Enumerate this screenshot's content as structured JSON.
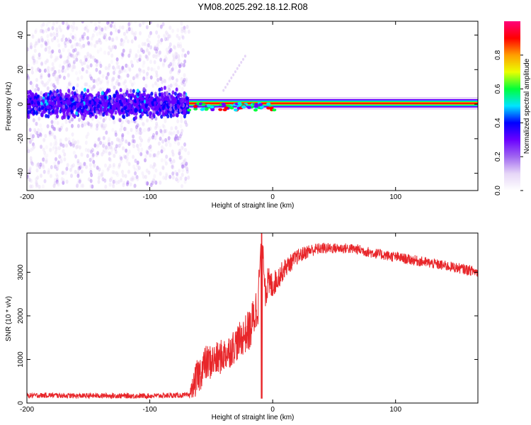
{
  "title": "YM08.2025.292.18.12.R08",
  "colors": {
    "snr_line": "#e8262a",
    "axis": "#000000",
    "colormap": [
      "#ffffff",
      "#e6d6f7",
      "#a066f0",
      "#6a00ff",
      "#0000ff",
      "#00e5ff",
      "#00ff3a",
      "#eaff00",
      "#ff9e00",
      "#ff0000",
      "#ff007a"
    ]
  },
  "chart_data": [
    {
      "type": "heatmap",
      "title": "",
      "xlabel": "Height of straight line (km)",
      "ylabel": "Frequency (Hz)",
      "xlim": [
        -200,
        167
      ],
      "ylim": [
        -50,
        48
      ],
      "xticks": [
        "-200",
        "-100",
        "0",
        "100"
      ],
      "xtick_values": [
        -200,
        -100,
        0,
        100
      ],
      "yticks": [
        "-40",
        "-20",
        "0",
        "20",
        "40"
      ],
      "ytick_values": [
        -40,
        -20,
        0,
        20,
        40
      ],
      "noise_region": {
        "x_from": -200,
        "x_to": -68,
        "freq_spread": 48,
        "band_center": 0,
        "band_halfwidth": 10
      },
      "signal_band": {
        "x_from": -68,
        "x_to": 167,
        "freq_center": 0.5,
        "freq_halfwidth": 1.5
      },
      "colorbar": {
        "label": "Normalized spectral amplitude",
        "range": [
          0,
          1
        ],
        "ticks": [
          "0.0",
          "0.2",
          "0.4",
          "0.6",
          "0.8"
        ],
        "tick_values": [
          0,
          0.2,
          0.4,
          0.6,
          0.8
        ]
      }
    },
    {
      "type": "line",
      "title": "",
      "xlabel": "Height of straight line (km)",
      "ylabel": "SNR (10 * v/v)",
      "xlim": [
        -200,
        167
      ],
      "ylim": [
        0,
        3900
      ],
      "xticks": [
        "-200",
        "-100",
        "0",
        "100"
      ],
      "xtick_values": [
        -200,
        -100,
        0,
        100
      ],
      "yticks": [
        "0",
        "1000",
        "2000",
        "3000"
      ],
      "ytick_values": [
        0,
        1000,
        2000,
        3000
      ],
      "series": [
        {
          "name": "SNR",
          "x": [
            -200,
            -180,
            -160,
            -140,
            -120,
            -100,
            -80,
            -68,
            -62,
            -55,
            -45,
            -35,
            -25,
            -18,
            -12,
            -9,
            -6,
            0,
            10,
            20,
            30,
            40,
            50,
            60,
            70,
            80,
            100,
            120,
            140,
            160,
            167
          ],
          "values": [
            170,
            180,
            165,
            170,
            165,
            165,
            175,
            180,
            550,
            900,
            1000,
            1200,
            1500,
            1700,
            2300,
            3900,
            2700,
            2700,
            3100,
            3350,
            3500,
            3550,
            3550,
            3550,
            3520,
            3450,
            3350,
            3250,
            3150,
            3050,
            3000
          ],
          "noise_amplitude": [
            60,
            60,
            60,
            60,
            60,
            60,
            60,
            60,
            420,
            420,
            400,
            400,
            420,
            500,
            550,
            0,
            500,
            300,
            220,
            180,
            150,
            130,
            120,
            120,
            120,
            120,
            120,
            120,
            120,
            120,
            120
          ]
        }
      ]
    }
  ]
}
